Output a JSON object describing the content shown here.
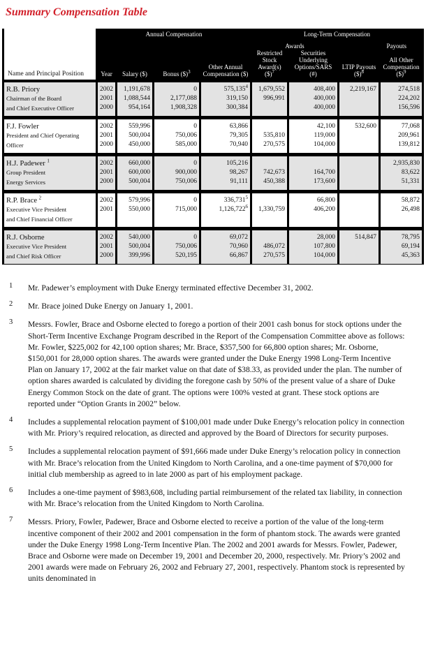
{
  "title": "Summary Compensation Table",
  "header": {
    "annual": "Annual Compensation",
    "long_term": "Long-Term Compensation",
    "awards": "Awards",
    "payouts": "Payouts",
    "name": "Name and Principal Position",
    "year": "Year",
    "salary": "Salary ($)",
    "bonus": "Bonus ($)",
    "bonus_sup": "3",
    "other_annual": "Other Annual Compensation ($)",
    "restricted": "Restricted Stock Award(s) ($)",
    "restricted_sup": "7",
    "securities": "Securities Underlying Options/SARS (#)",
    "ltip": "LTIP Payouts ($)",
    "ltip_sup": "8",
    "all_other": "All Other Compensation ($)",
    "all_other_sup": "9"
  },
  "rows": [
    {
      "name": "R.B. Priory",
      "sup": "",
      "position": [
        "Chairman of the Board",
        "and Chief Executive Officer"
      ],
      "shade": "gray",
      "year": [
        "2002",
        "2001",
        "2000"
      ],
      "salary": [
        "1,191,678",
        "1,088,544",
        "954,164"
      ],
      "bonus": [
        "0",
        "2,177,088",
        "1,908,328"
      ],
      "other": [
        "575,135",
        "319,150",
        "300,384"
      ],
      "other_sup": [
        "4",
        "",
        ""
      ],
      "restricted": [
        "1,679,552",
        "996,991",
        ""
      ],
      "securities": [
        "408,400",
        "400,000",
        "400,000"
      ],
      "ltip": [
        "2,219,167",
        "",
        ""
      ],
      "all_other": [
        "274,518",
        "224,202",
        "156,596"
      ]
    },
    {
      "name": "F.J. Fowler",
      "sup": "",
      "position": [
        "President and Chief Operating",
        "Officer"
      ],
      "shade": "white",
      "year": [
        "2002",
        "2001",
        "2000"
      ],
      "salary": [
        "559,996",
        "500,004",
        "450,000"
      ],
      "bonus": [
        "0",
        "750,006",
        "585,000"
      ],
      "other": [
        "63,866",
        "79,305",
        "70,940"
      ],
      "other_sup": [
        "",
        "",
        ""
      ],
      "restricted": [
        "",
        "535,810",
        "270,575"
      ],
      "securities": [
        "42,100",
        "119,000",
        "104,000"
      ],
      "ltip": [
        "532,600",
        "",
        ""
      ],
      "all_other": [
        "77,068",
        "209,961",
        "139,812"
      ]
    },
    {
      "name": "H.J. Padewer",
      "sup": "1",
      "position": [
        "Group President",
        "Energy Services"
      ],
      "shade": "gray",
      "year": [
        "2002",
        "2001",
        "2000"
      ],
      "salary": [
        "660,000",
        "600,000",
        "500,004"
      ],
      "bonus": [
        "0",
        "900,000",
        "750,006"
      ],
      "other": [
        "105,216",
        "98,267",
        "91,111"
      ],
      "other_sup": [
        "",
        "",
        ""
      ],
      "restricted": [
        "",
        "742,673",
        "450,388"
      ],
      "securities": [
        "",
        "164,700",
        "173,600"
      ],
      "ltip": [
        "",
        "",
        ""
      ],
      "all_other": [
        "2,935,830",
        "83,622",
        "51,331"
      ]
    },
    {
      "name": "R.P. Brace",
      "sup": "2",
      "position": [
        "Executive Vice President",
        "and Chief Financial Officer"
      ],
      "shade": "white",
      "year": [
        "2002",
        "2001"
      ],
      "salary": [
        "579,996",
        "550,000"
      ],
      "bonus": [
        "0",
        "715,000"
      ],
      "other": [
        "336,731",
        "1,126,722"
      ],
      "other_sup": [
        "5",
        "6"
      ],
      "restricted": [
        "",
        "1,330,759"
      ],
      "securities": [
        "66,800",
        "406,200"
      ],
      "ltip": [
        "",
        ""
      ],
      "all_other": [
        "58,872",
        "26,498"
      ]
    },
    {
      "name": "R.J. Osborne",
      "sup": "",
      "position": [
        "Executive Vice President",
        "and Chief Risk Officer"
      ],
      "shade": "gray",
      "year": [
        "2002",
        "2001",
        "2000"
      ],
      "salary": [
        "540,000",
        "500,004",
        "399,996"
      ],
      "bonus": [
        "0",
        "750,006",
        "520,195"
      ],
      "other": [
        "69,072",
        "70,960",
        "66,867"
      ],
      "other_sup": [
        "",
        "",
        ""
      ],
      "restricted": [
        "",
        "486,072",
        "270,575"
      ],
      "securities": [
        "28,000",
        "107,800",
        "104,000"
      ],
      "ltip": [
        "514,847",
        "",
        ""
      ],
      "all_other": [
        "78,795",
        "69,194",
        "45,363"
      ]
    }
  ],
  "footnotes": [
    {
      "num": "1",
      "text": "Mr. Padewer’s employment with Duke Energy terminated effective December 31, 2002."
    },
    {
      "num": "2",
      "text": "Mr. Brace joined Duke Energy on January 1, 2001."
    },
    {
      "num": "3",
      "text": "Messrs. Fowler, Brace and Osborne elected to forego a portion of their 2001 cash bonus for stock options under the Short-Term Incentive Exchange Program described in the Report of the Compensation Committee above as follows: Mr. Fowler, $225,002 for 42,100 option shares; Mr. Brace, $357,500 for 66,800 option shares; Mr. Osborne, $150,001 for 28,000 option shares. The awards were granted under the Duke Energy 1998 Long-Term Incentive Plan on January 17, 2002 at the fair market value on that date of $38.33, as provided under the plan. The number of option shares awarded is calculated by dividing the foregone cash by 50% of the present value of a share of Duke Energy Common Stock on the date of grant. The options were 100% vested at grant. These stock options are reported under “Option Grants in 2002” below."
    },
    {
      "num": "4",
      "text": "Includes a supplemental relocation payment of $100,001 made under Duke Energy’s relocation policy in connection with Mr. Priory’s required relocation, as directed and approved by the Board of Directors for security purposes."
    },
    {
      "num": "5",
      "text": "Includes a supplemental relocation payment of $91,666 made under Duke Energy’s relocation policy in connection with Mr. Brace’s relocation from the United Kingdom to North Carolina, and a one-time payment of $70,000 for initial club membership as agreed to in late 2000 as part of his employment package."
    },
    {
      "num": "6",
      "text": "Includes a one-time payment of $983,608, including partial reimbursement of the related tax liability, in connection with Mr. Brace’s relocation from the United Kingdom to North Carolina."
    },
    {
      "num": "7",
      "text": "Messrs. Priory, Fowler, Padewer, Brace and Osborne elected to receive a portion of the value of the long-term incentive component of their 2002 and 2001 compensation in the form of phantom stock. The awards were granted under the Duke Energy 1998 Long-Term Incentive Plan. The 2002 and 2001 awards for Messrs. Fowler, Padewer, Brace and Osborne were made on December 19, 2001 and December 20, 2000, respectively. Mr. Priory’s 2002 and 2001 awards were made on February 26, 2002 and February 27, 2001, respectively. Phantom stock is represented by units denominated in"
    }
  ]
}
